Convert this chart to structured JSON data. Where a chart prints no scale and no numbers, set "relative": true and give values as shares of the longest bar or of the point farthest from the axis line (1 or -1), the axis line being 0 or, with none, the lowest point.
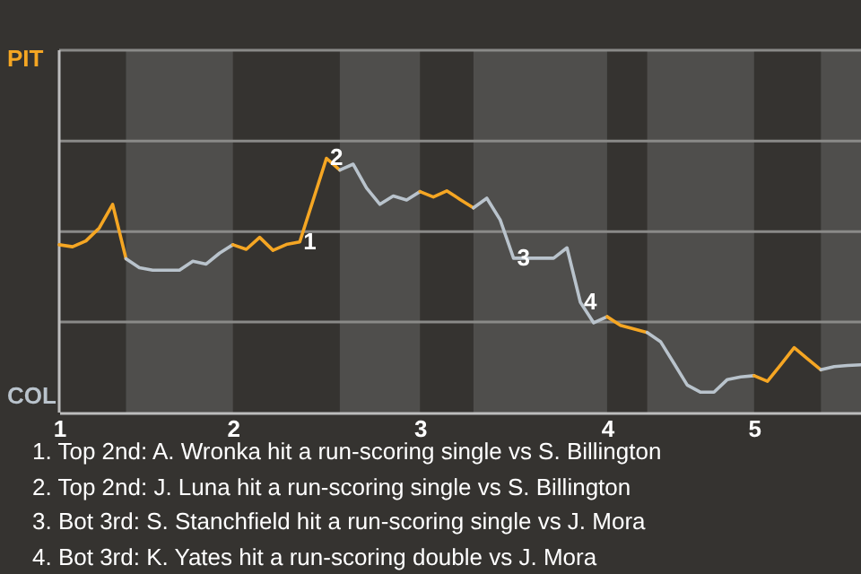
{
  "chart_data": {
    "type": "line",
    "relative": true,
    "categories": [
      "1",
      null,
      null,
      null,
      null,
      null,
      null,
      null,
      null,
      null,
      null,
      null,
      null,
      "2",
      null,
      null,
      null,
      null,
      null,
      null,
      null,
      null,
      null,
      null,
      null,
      null,
      null,
      "3",
      null,
      null,
      null,
      null,
      null,
      null,
      null,
      null,
      null,
      null,
      null,
      null,
      null,
      "4",
      null,
      null,
      null,
      null,
      null,
      null,
      null,
      null,
      null,
      null,
      "5",
      null,
      null,
      null,
      null,
      null,
      null,
      null,
      null
    ],
    "ref_lines": [
      {
        "axis": "y",
        "value": 0.356,
        "color": "#8a8a88"
      },
      {
        "axis": "y",
        "value": 0.712,
        "color": "#8a8a88"
      },
      {
        "axis": "y",
        "value": 1.068,
        "color": "#8a8a88"
      },
      {
        "axis": "y",
        "value": 1.425,
        "color": "#8a8a88"
      }
    ],
    "series": [
      {
        "color": "#f5a623",
        "values": [
          0.66,
          0.652,
          0.675,
          0.726,
          0.819,
          0.605,
          null,
          null,
          null,
          null,
          null,
          null,
          null,
          null,
          null,
          null,
          null,
          null,
          null,
          null,
          null,
          null,
          null,
          null,
          null,
          null,
          null,
          null,
          null,
          null,
          null,
          null,
          null,
          null,
          null,
          null,
          null,
          null,
          null,
          null,
          null,
          null,
          null,
          null,
          null,
          null,
          null,
          null,
          null,
          null,
          null,
          null,
          null,
          null,
          null,
          null,
          null,
          null,
          null,
          null,
          null
        ]
      },
      {
        "color": "#b9c3cc",
        "values": [
          null,
          null,
          null,
          null,
          null,
          0.605,
          0.57,
          0.56,
          0.56,
          0.56,
          0.595,
          0.584,
          0.627,
          0.66,
          null,
          null,
          null,
          null,
          null,
          null,
          null,
          null,
          null,
          null,
          null,
          null,
          null,
          null,
          null,
          null,
          null,
          null,
          null,
          null,
          null,
          null,
          null,
          null,
          null,
          null,
          null,
          null,
          null,
          null,
          null,
          null,
          null,
          null,
          null,
          null,
          null,
          null,
          null,
          null,
          null,
          null,
          null,
          null,
          null,
          null,
          null
        ]
      },
      {
        "color": "#f5a623",
        "values": [
          null,
          null,
          null,
          null,
          null,
          null,
          null,
          null,
          null,
          null,
          null,
          null,
          null,
          0.66,
          0.642,
          0.689,
          0.638,
          0.661,
          0.671,
          0.835,
          1,
          0.954,
          null,
          null,
          null,
          null,
          null,
          null,
          null,
          null,
          null,
          null,
          null,
          null,
          null,
          null,
          null,
          null,
          null,
          null,
          null,
          null,
          null,
          null,
          null,
          null,
          null,
          null,
          null,
          null,
          null,
          null,
          null,
          null,
          null,
          null,
          null,
          null,
          null,
          null,
          null
        ]
      },
      {
        "color": "#b9c3cc",
        "values": [
          null,
          null,
          null,
          null,
          null,
          null,
          null,
          null,
          null,
          null,
          null,
          null,
          null,
          null,
          null,
          null,
          null,
          null,
          null,
          null,
          null,
          0.954,
          0.977,
          0.883,
          0.819,
          0.852,
          0.836,
          0.869,
          null,
          null,
          null,
          null,
          null,
          null,
          null,
          null,
          null,
          null,
          null,
          null,
          null,
          null,
          null,
          null,
          null,
          null,
          null,
          null,
          null,
          null,
          null,
          null,
          null,
          null,
          null,
          null,
          null,
          null,
          null,
          null,
          null
        ]
      },
      {
        "color": "#f5a623",
        "values": [
          null,
          null,
          null,
          null,
          null,
          null,
          null,
          null,
          null,
          null,
          null,
          null,
          null,
          null,
          null,
          null,
          null,
          null,
          null,
          null,
          null,
          null,
          null,
          null,
          null,
          null,
          null,
          0.869,
          0.848,
          0.872,
          0.838,
          0.805,
          null,
          null,
          null,
          null,
          null,
          null,
          null,
          null,
          null,
          null,
          null,
          null,
          null,
          null,
          null,
          null,
          null,
          null,
          null,
          null,
          null,
          null,
          null,
          null,
          null,
          null,
          null,
          null,
          null
        ]
      },
      {
        "color": "#b9c3cc",
        "values": [
          null,
          null,
          null,
          null,
          null,
          null,
          null,
          null,
          null,
          null,
          null,
          null,
          null,
          null,
          null,
          null,
          null,
          null,
          null,
          null,
          null,
          null,
          null,
          null,
          null,
          null,
          null,
          null,
          null,
          null,
          null,
          0.805,
          0.843,
          0.758,
          0.607,
          0.607,
          0.607,
          0.607,
          0.648,
          0.434,
          0.353,
          0.377,
          null,
          null,
          null,
          null,
          null,
          null,
          null,
          null,
          null,
          null,
          null,
          null,
          null,
          null,
          null,
          null,
          null,
          null,
          null
        ]
      },
      {
        "color": "#f5a623",
        "values": [
          null,
          null,
          null,
          null,
          null,
          null,
          null,
          null,
          null,
          null,
          null,
          null,
          null,
          null,
          null,
          null,
          null,
          null,
          null,
          null,
          null,
          null,
          null,
          null,
          null,
          null,
          null,
          null,
          null,
          null,
          null,
          null,
          null,
          null,
          null,
          null,
          null,
          null,
          null,
          null,
          null,
          0.377,
          0.343,
          0.329,
          0.315,
          null,
          null,
          null,
          null,
          null,
          null,
          null,
          null,
          null,
          null,
          null,
          null,
          null,
          null,
          null,
          null
        ]
      },
      {
        "color": "#b9c3cc",
        "values": [
          null,
          null,
          null,
          null,
          null,
          null,
          null,
          null,
          null,
          null,
          null,
          null,
          null,
          null,
          null,
          null,
          null,
          null,
          null,
          null,
          null,
          null,
          null,
          null,
          null,
          null,
          null,
          null,
          null,
          null,
          null,
          null,
          null,
          null,
          null,
          null,
          null,
          null,
          null,
          null,
          null,
          null,
          null,
          null,
          0.315,
          0.279,
          0.194,
          0.108,
          0.08,
          0.08,
          0.13,
          0.14,
          0.145,
          null,
          null,
          null,
          null,
          null,
          null,
          null,
          null
        ]
      },
      {
        "color": "#f5a623",
        "values": [
          null,
          null,
          null,
          null,
          null,
          null,
          null,
          null,
          null,
          null,
          null,
          null,
          null,
          null,
          null,
          null,
          null,
          null,
          null,
          null,
          null,
          null,
          null,
          null,
          null,
          null,
          null,
          null,
          null,
          null,
          null,
          null,
          null,
          null,
          null,
          null,
          null,
          null,
          null,
          null,
          null,
          null,
          null,
          null,
          null,
          null,
          null,
          null,
          null,
          null,
          null,
          null,
          0.145,
          0.123,
          0.188,
          0.255,
          0.211,
          0.168,
          null,
          null,
          null
        ]
      },
      {
        "color": "#b9c3cc",
        "values": [
          null,
          null,
          null,
          null,
          null,
          null,
          null,
          null,
          null,
          null,
          null,
          null,
          null,
          null,
          null,
          null,
          null,
          null,
          null,
          null,
          null,
          null,
          null,
          null,
          null,
          null,
          null,
          null,
          null,
          null,
          null,
          null,
          null,
          null,
          null,
          null,
          null,
          null,
          null,
          null,
          null,
          null,
          null,
          null,
          null,
          null,
          null,
          null,
          null,
          null,
          null,
          null,
          null,
          null,
          null,
          null,
          null,
          0.168,
          0.181,
          0.185,
          0.188
        ]
      }
    ],
    "annotations": [
      "PIT",
      "COL",
      {
        "text": "1",
        "y": 0.671
      },
      {
        "text": "2",
        "y": 1
      },
      {
        "text": "3",
        "y": 0.607
      },
      {
        "text": "4",
        "y": 0.434
      },
      "1. Top 2nd: A. Wronka hit a run-scoring single vs S. Billington",
      "2. Top 2nd: J. Luna hit a run-scoring single vs S. Billington",
      "3. Bot 3rd: S. Stanchfield hit a run-scoring single vs J. Mora",
      "4. Bot 3rd: K. Yates hit a run-scoring double vs J. Mora"
    ]
  }
}
